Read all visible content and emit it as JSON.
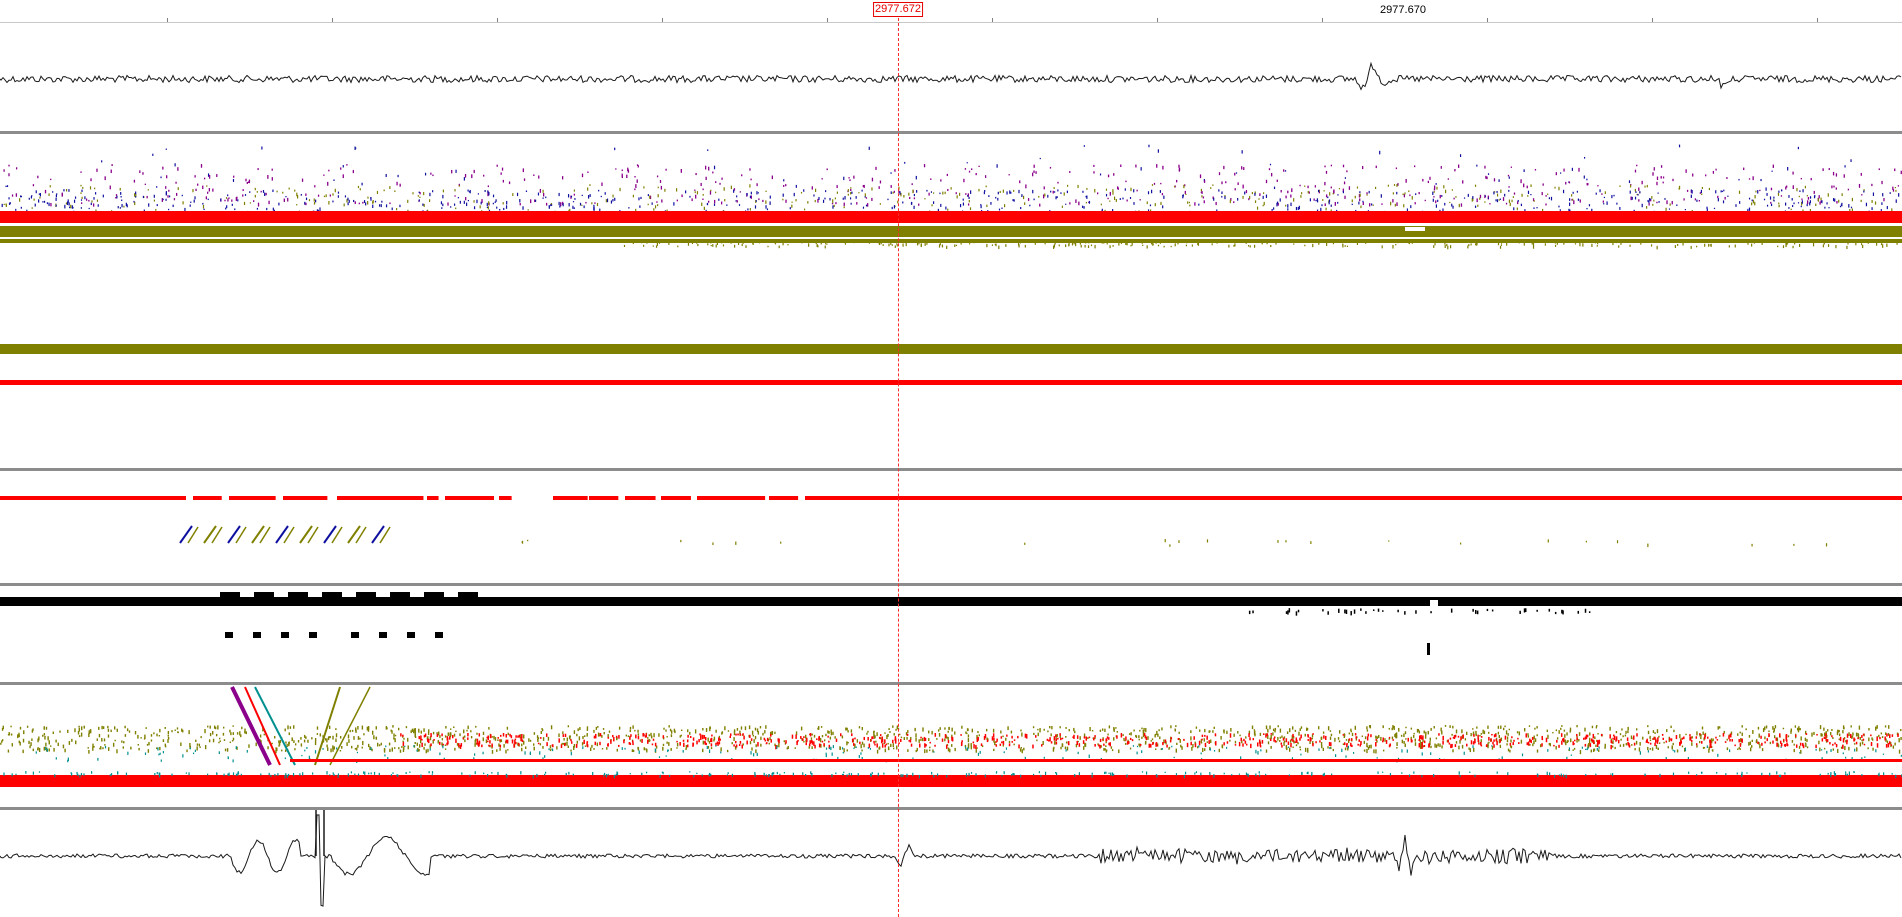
{
  "ruler": {
    "cursor_label": "2977.672",
    "secondary_label": "2977.670"
  },
  "colors": {
    "trace": "#1a1a1a",
    "cursor": "#ff2a2a",
    "red": "#ff0000",
    "olive": "#808000",
    "purple": "#8b008b",
    "blue": "#1010a0",
    "teal": "#009090",
    "black": "#000000",
    "separator": "#8c8c8c"
  },
  "panels": [
    {
      "name": "waveform-top-panel",
      "kind": "waveform"
    },
    {
      "name": "spectrogram-panel-1",
      "kind": "scatter"
    },
    {
      "name": "spectrogram-panel-2",
      "kind": "scatter"
    },
    {
      "name": "spectrogram-panel-3",
      "kind": "scatter"
    },
    {
      "name": "spectrogram-panel-4",
      "kind": "scatter"
    },
    {
      "name": "waveform-bottom-panel",
      "kind": "waveform"
    }
  ]
}
